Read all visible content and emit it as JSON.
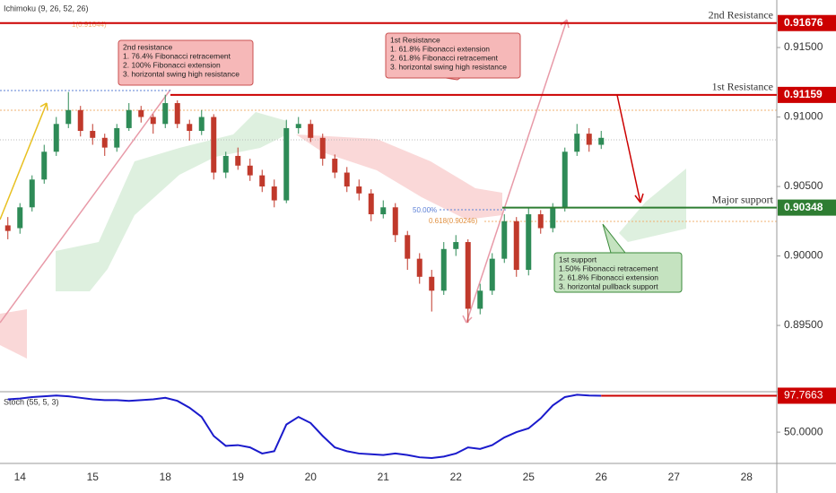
{
  "chart_data": [
    {
      "type": "candlestick",
      "title": "Ichimoku (9, 26, 52, 26)",
      "categories": [
        null,
        "14",
        null,
        null,
        null,
        null,
        null,
        "15",
        null,
        null,
        null,
        null,
        null,
        "18",
        null,
        null,
        null,
        null,
        null,
        "19",
        null,
        null,
        null,
        null,
        null,
        "20",
        null,
        null,
        null,
        null,
        null,
        "21",
        null,
        null,
        null,
        null,
        null,
        "22",
        null,
        null,
        null,
        null,
        null,
        "25",
        null,
        null,
        null,
        null,
        null,
        "26",
        null,
        null,
        null,
        null,
        null,
        "27",
        null,
        null,
        null,
        null,
        null,
        "28",
        null,
        null
      ],
      "open": [
        0.9022,
        0.902,
        0.9035,
        0.9055,
        0.9075,
        0.9095,
        0.9105,
        0.909,
        0.9085,
        0.9078,
        0.9092,
        0.9105,
        0.91,
        0.9095,
        0.911,
        0.9095,
        0.909,
        0.91,
        0.906,
        0.9072,
        0.9065,
        0.9058,
        0.905,
        0.904,
        0.9092,
        0.9095,
        0.9085,
        0.907,
        0.906,
        0.905,
        0.9045,
        0.903,
        0.9035,
        0.9015,
        0.8998,
        0.8985,
        0.8975,
        0.9005,
        0.901,
        0.8962,
        0.8975,
        0.8998,
        0.9025,
        0.899,
        0.903,
        0.902,
        0.9035,
        0.9075,
        0.9088,
        0.908,
        null,
        null,
        null,
        null,
        null,
        null,
        null,
        null,
        null,
        null,
        null,
        null,
        null,
        null
      ],
      "high": [
        0.9028,
        0.9038,
        0.9058,
        0.908,
        0.91,
        0.9118,
        0.9108,
        0.9095,
        0.9088,
        0.9095,
        0.911,
        0.9108,
        0.9102,
        0.9116,
        0.9112,
        0.9098,
        0.9105,
        0.9102,
        0.9075,
        0.9078,
        0.907,
        0.9062,
        0.9055,
        0.9098,
        0.91,
        0.9098,
        0.9088,
        0.9073,
        0.9064,
        0.9055,
        0.9048,
        0.904,
        0.9038,
        0.9018,
        0.9002,
        0.899,
        0.901,
        0.9015,
        0.9012,
        0.898,
        0.9002,
        0.903,
        0.9028,
        0.9035,
        0.9033,
        0.9038,
        0.9078,
        0.9095,
        0.9092,
        0.909,
        null,
        null,
        null,
        null,
        null,
        null,
        null,
        null,
        null,
        null,
        null,
        null,
        null,
        null
      ],
      "low": [
        0.9012,
        0.9016,
        0.9032,
        0.9052,
        0.9072,
        0.9092,
        0.9086,
        0.908,
        0.9072,
        0.9075,
        0.909,
        0.9096,
        0.9088,
        0.9092,
        0.9092,
        0.9083,
        0.9087,
        0.9055,
        0.9056,
        0.9062,
        0.9054,
        0.9046,
        0.9035,
        0.9038,
        0.9088,
        0.9082,
        0.9065,
        0.9056,
        0.9046,
        0.904,
        0.9025,
        0.9027,
        0.901,
        0.899,
        0.898,
        0.896,
        0.8972,
        0.9,
        0.8952,
        0.8958,
        0.8972,
        0.8995,
        0.8985,
        0.8986,
        0.9016,
        0.9017,
        0.9032,
        0.9072,
        0.9075,
        0.9077,
        null,
        null,
        null,
        null,
        null,
        null,
        null,
        null,
        null,
        null,
        null,
        null,
        null,
        null
      ],
      "close": [
        0.9018,
        0.9035,
        0.9055,
        0.9075,
        0.9095,
        0.9105,
        0.909,
        0.9085,
        0.9078,
        0.9092,
        0.9105,
        0.91,
        0.9095,
        0.911,
        0.9095,
        0.909,
        0.91,
        0.906,
        0.9072,
        0.9065,
        0.9058,
        0.905,
        0.904,
        0.9092,
        0.9095,
        0.9085,
        0.907,
        0.906,
        0.905,
        0.9045,
        0.903,
        0.9035,
        0.9015,
        0.8998,
        0.8985,
        0.8975,
        0.9005,
        0.901,
        0.8962,
        0.8975,
        0.8998,
        0.9025,
        0.899,
        0.903,
        0.902,
        0.9035,
        0.9075,
        0.9088,
        0.908,
        0.9085,
        null,
        null,
        null,
        null,
        null,
        null,
        null,
        null,
        null,
        null,
        null,
        null,
        null,
        null
      ],
      "up_color": "#2e8b57",
      "down_color": "#c0392b",
      "ylim": [
        0.89023,
        0.91842
      ],
      "yticks": [
        {
          "value": 0.915,
          "label": "0.91500"
        },
        {
          "value": 0.91,
          "label": "0.91000"
        },
        {
          "value": 0.905,
          "label": "0.90500"
        },
        {
          "value": 0.9,
          "label": "0.90000"
        },
        {
          "value": 0.895,
          "label": "0.89500"
        }
      ],
      "levels": [
        {
          "name": "2nd Resistance",
          "value": 0.91676,
          "color": "#cc0000"
        },
        {
          "name": "1st Resistance",
          "value": 0.91159,
          "color": "#cc0000"
        },
        {
          "name": "Major support",
          "value": 0.90348,
          "color": "#2e7d32"
        }
      ],
      "fib_labels": [
        "1(0.91644)",
        "50.00%",
        "0.618(0.90246)"
      ],
      "annotations": [
        {
          "lines": [
            "2nd resistance",
            "1. 76.4% Fibonacci retracement",
            "2. 100% Fibonacci extension",
            "3. horizontal swing high resistance"
          ]
        },
        {
          "lines": [
            "1st Resistance",
            "1. 61.8% Fibonacci extension",
            "2. 61.8% Fibonacci retracement",
            "3. horizontal swing high resistance"
          ]
        },
        {
          "lines": [
            "1st support",
            "1.50% Fibonacci retracement",
            "2. 61.8% Fibonacci extension",
            "3. horizontal pullback support"
          ]
        }
      ]
    },
    {
      "type": "line",
      "title": "Stoch (55, 5, 3)",
      "color": "#1a1acc",
      "values": [
        93,
        94,
        96,
        97,
        98,
        97,
        95,
        93,
        92,
        92,
        91,
        92,
        93,
        95,
        91,
        82,
        70,
        45,
        32,
        33,
        30,
        22,
        25,
        60,
        70,
        62,
        45,
        30,
        25,
        22,
        21,
        20,
        22,
        20,
        17,
        16,
        18,
        22,
        30,
        28,
        33,
        43,
        50,
        55,
        68,
        85,
        96,
        99,
        98,
        97.7663,
        null,
        null,
        null,
        null,
        null,
        null,
        null,
        null,
        null,
        null,
        null,
        null,
        null,
        null
      ],
      "ylim": [
        9,
        103
      ],
      "yticks": [
        {
          "value": 50,
          "label": "50.0000"
        }
      ]
    }
  ]
}
